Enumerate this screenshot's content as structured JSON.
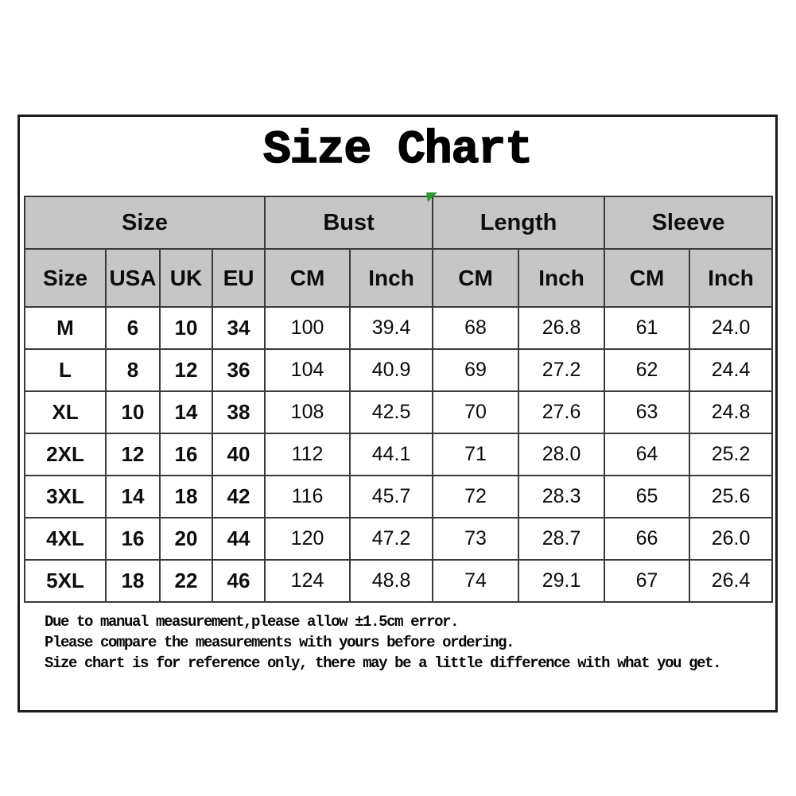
{
  "title": "Size Chart",
  "colors": {
    "header_bg": "#c6c6c6",
    "grid_line": "#3a3a3a",
    "frame_border": "#1c1c1c",
    "marker_green": "#2f9b2f",
    "text": "#000000",
    "page_bg": "#ffffff"
  },
  "table": {
    "groups": [
      {
        "label": "Size",
        "span": 4
      },
      {
        "label": "Bust",
        "span": 2
      },
      {
        "label": "Length",
        "span": 2
      },
      {
        "label": "Sleeve",
        "span": 2
      }
    ],
    "columns": [
      "Size",
      "USA",
      "UK",
      "EU",
      "CM",
      "Inch",
      "CM",
      "Inch",
      "CM",
      "Inch"
    ],
    "rows": [
      [
        "M",
        "6",
        "10",
        "34",
        "100",
        "39.4",
        "68",
        "26.8",
        "61",
        "24.0"
      ],
      [
        "L",
        "8",
        "12",
        "36",
        "104",
        "40.9",
        "69",
        "27.2",
        "62",
        "24.4"
      ],
      [
        "XL",
        "10",
        "14",
        "38",
        "108",
        "42.5",
        "70",
        "27.6",
        "63",
        "24.8"
      ],
      [
        "2XL",
        "12",
        "16",
        "40",
        "112",
        "44.1",
        "71",
        "28.0",
        "64",
        "25.2"
      ],
      [
        "3XL",
        "14",
        "18",
        "42",
        "116",
        "45.7",
        "72",
        "28.3",
        "65",
        "25.6"
      ],
      [
        "4XL",
        "16",
        "20",
        "44",
        "120",
        "47.2",
        "73",
        "28.7",
        "66",
        "26.0"
      ],
      [
        "5XL",
        "18",
        "22",
        "46",
        "124",
        "48.8",
        "74",
        "29.1",
        "67",
        "26.4"
      ]
    ]
  },
  "notes": [
    "Due to manual measurement,please allow ±1.5cm error.",
    "Please compare the measurements with yours before ordering.",
    "Size chart is for reference only, there may be a little difference with what you get."
  ]
}
